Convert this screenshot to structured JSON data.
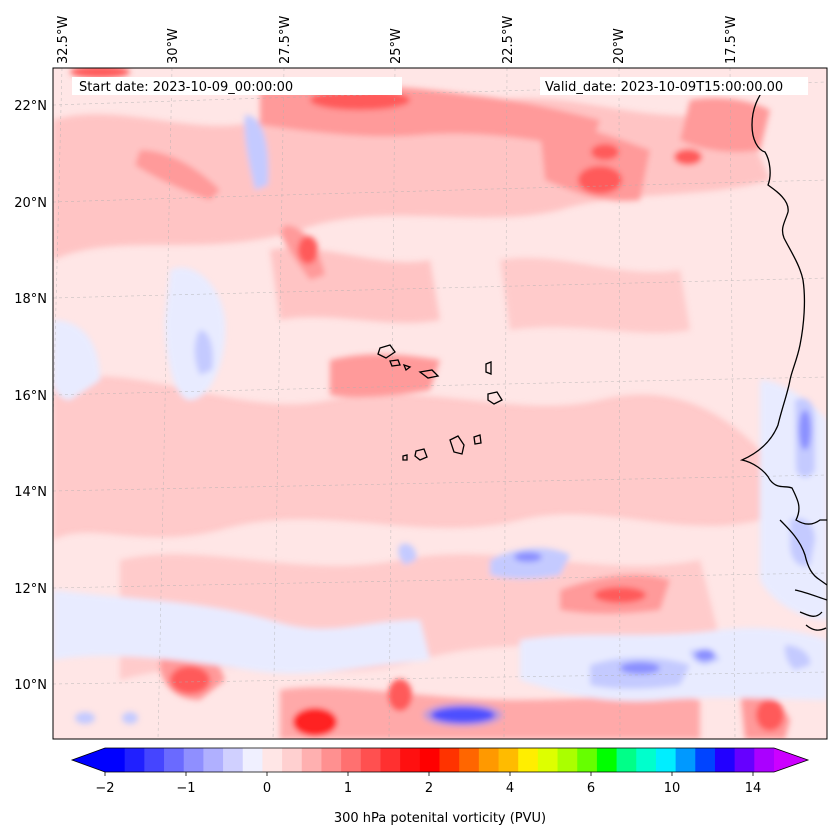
{
  "header": {
    "start_date": "Start date: 2023-10-09_00:00:00",
    "valid_date": "Valid_date: 2023-10-09T15:00:00.00"
  },
  "map": {
    "lon_labels": [
      "32.5°W",
      "30°W",
      "27.5°W",
      "25°W",
      "22.5°W",
      "20°W",
      "17.5°W"
    ],
    "lat_labels": [
      "22°N",
      "20°N",
      "18°N",
      "16°N",
      "14°N",
      "12°N",
      "10°N"
    ],
    "field_colors": {
      "background": "#ffe6e6",
      "light_red": "#ffc4c4",
      "mid_red": "#ff9a9a",
      "strong_red": "#ff5a5a",
      "deep_red": "#ff2020",
      "light_blue": "#e8ebff",
      "mid_blue": "#c4caff",
      "strong_blue": "#8a8fff",
      "deep_blue": "#1010ff"
    },
    "coast_color": "#000000"
  },
  "colorbar": {
    "tick_labels": [
      "−2",
      "−1",
      "0",
      "1",
      "2",
      "4",
      "6",
      "10",
      "14"
    ],
    "label": "300 hPa potenital vorticity (PVU)",
    "colors": [
      "#0000ff",
      "#2020ff",
      "#4545ff",
      "#6a6aff",
      "#8f8fff",
      "#b0b0ff",
      "#d0d0ff",
      "#f0f0ff",
      "#ffe6e6",
      "#ffd0d0",
      "#ffb0b0",
      "#ff9090",
      "#ff7070",
      "#ff5050",
      "#ff3030",
      "#ff1010",
      "#ff0000",
      "#ff3300",
      "#ff6600",
      "#ff9900",
      "#ffbb00",
      "#ffee00",
      "#ddff00",
      "#aaff00",
      "#66ff00",
      "#00ff00",
      "#00ff88",
      "#00ffcc",
      "#00eeff",
      "#0099ff",
      "#0044ff",
      "#2200ff",
      "#6600ff",
      "#aa00ff"
    ],
    "extend_low": "#0000ff",
    "extend_high": "#cc00ff"
  }
}
